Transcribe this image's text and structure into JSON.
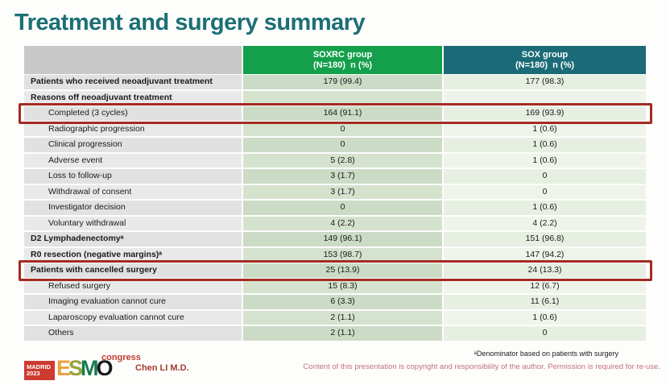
{
  "slide": {
    "title": "Treatment and surgery summary"
  },
  "table": {
    "header": {
      "group1": {
        "line1": "SOXRC group",
        "line2": "(N=180)  n (%)"
      },
      "group2": {
        "line1": "SOX group",
        "line2": "(N=180)  n (%)"
      }
    },
    "rows": [
      {
        "label": "Patients who received neoadjuvant treatment",
        "bold": true,
        "indent": false,
        "soxrc": "179 (99.4)",
        "sox": "177 (98.3)",
        "highlight": false
      },
      {
        "label": "Reasons off neoadjuvant treatment",
        "bold": true,
        "indent": false,
        "soxrc": "",
        "sox": "",
        "highlight": false
      },
      {
        "label": "Completed (3 cycles)",
        "bold": false,
        "indent": true,
        "soxrc": "164 (91.1)",
        "sox": "169 (93.9)",
        "highlight": true
      },
      {
        "label": "Radiographic progression",
        "bold": false,
        "indent": true,
        "soxrc": "0",
        "sox": "1 (0.6)",
        "highlight": false
      },
      {
        "label": "Clinical progression",
        "bold": false,
        "indent": true,
        "soxrc": "0",
        "sox": "1 (0.6)",
        "highlight": false
      },
      {
        "label": "Adverse event",
        "bold": false,
        "indent": true,
        "soxrc": "5 (2.8)",
        "sox": "1 (0.6)",
        "highlight": false
      },
      {
        "label": "Loss to follow-up",
        "bold": false,
        "indent": true,
        "soxrc": "3 (1.7)",
        "sox": "0",
        "highlight": false
      },
      {
        "label": "Withdrawal of consent",
        "bold": false,
        "indent": true,
        "soxrc": "3 (1.7)",
        "sox": "0",
        "highlight": false
      },
      {
        "label": "Investigator decision",
        "bold": false,
        "indent": true,
        "soxrc": "0",
        "sox": "1 (0.6)",
        "highlight": false
      },
      {
        "label": "Voluntary withdrawal",
        "bold": false,
        "indent": true,
        "soxrc": "4 (2.2)",
        "sox": "4 (2.2)",
        "highlight": false
      },
      {
        "label": "D2 Lymphadenectomyᵃ",
        "bold": true,
        "indent": false,
        "soxrc": "149 (96.1)",
        "sox": "151 (96.8)",
        "highlight": false
      },
      {
        "label": "R0 resection (negative margins)ᵃ",
        "bold": true,
        "indent": false,
        "soxrc": "153 (98.7)",
        "sox": "147 (94.2)",
        "highlight": false
      },
      {
        "label": "Patients with cancelled surgery",
        "bold": true,
        "indent": false,
        "soxrc": "25 (13.9)",
        "sox": "24 (13.3)",
        "highlight": true
      },
      {
        "label": "Refused surgery",
        "bold": false,
        "indent": true,
        "soxrc": "15 (8.3)",
        "sox": "12 (6.7)",
        "highlight": false
      },
      {
        "label": "Imaging evaluation cannot cure",
        "bold": false,
        "indent": true,
        "soxrc": "6 (3.3)",
        "sox": "11 (6.1)",
        "highlight": false
      },
      {
        "label": "Laparoscopy evaluation cannot cure",
        "bold": false,
        "indent": true,
        "soxrc": "2 (1.1)",
        "sox": "1 (0.6)",
        "highlight": false
      },
      {
        "label": "Others",
        "bold": false,
        "indent": true,
        "soxrc": "2 (1.1)",
        "sox": "0",
        "highlight": false
      }
    ]
  },
  "footer": {
    "logo": {
      "badge_line1": "MADRID",
      "badge_line2": "2023",
      "letter_e": "E",
      "letter_s": "S",
      "letter_m": "M",
      "letter_o": "O",
      "congress": "congress"
    },
    "presenter": "Chen LI M.D.",
    "footnote": "ᵃDenominator based on patients with surgery",
    "copyright": "Content of this presentation is copyright and responsibility of the author.  Permission is required for re-use."
  },
  "colors": {
    "title_teal": "#1c6f74",
    "soxrc_header_green": "#14a04b",
    "sox_header_teal": "#1a6b77",
    "highlight_red": "#a32b22",
    "presenter_red": "#a63c30",
    "copyright_pink": "#c4707f"
  }
}
